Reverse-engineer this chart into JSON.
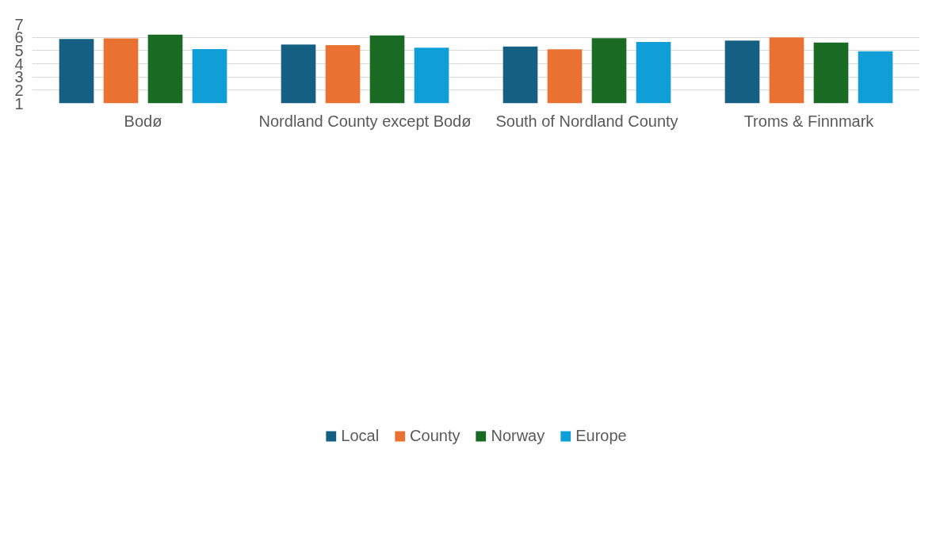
{
  "chart_data": {
    "type": "bar",
    "categories": [
      "Bodø",
      "Nordland County except Bodø",
      "South of Nordland County",
      "Troms & Finnmark"
    ],
    "series": [
      {
        "name": "Local",
        "color": "#156082",
        "values": [
          5.87,
          5.46,
          5.31,
          5.76
        ]
      },
      {
        "name": "County",
        "color": "#e97132",
        "values": [
          5.92,
          5.41,
          5.09,
          5.99
        ]
      },
      {
        "name": "Norway",
        "color": "#196b24",
        "values": [
          6.2,
          6.14,
          5.93,
          5.61
        ]
      },
      {
        "name": "Europe",
        "color": "#0f9ed5",
        "values": [
          5.11,
          5.22,
          5.65,
          4.94
        ]
      }
    ],
    "ylim": [
      1,
      7
    ],
    "yticks": [
      1,
      2,
      3,
      4,
      5,
      6,
      7
    ],
    "grid": "y",
    "legend": "bottom"
  }
}
